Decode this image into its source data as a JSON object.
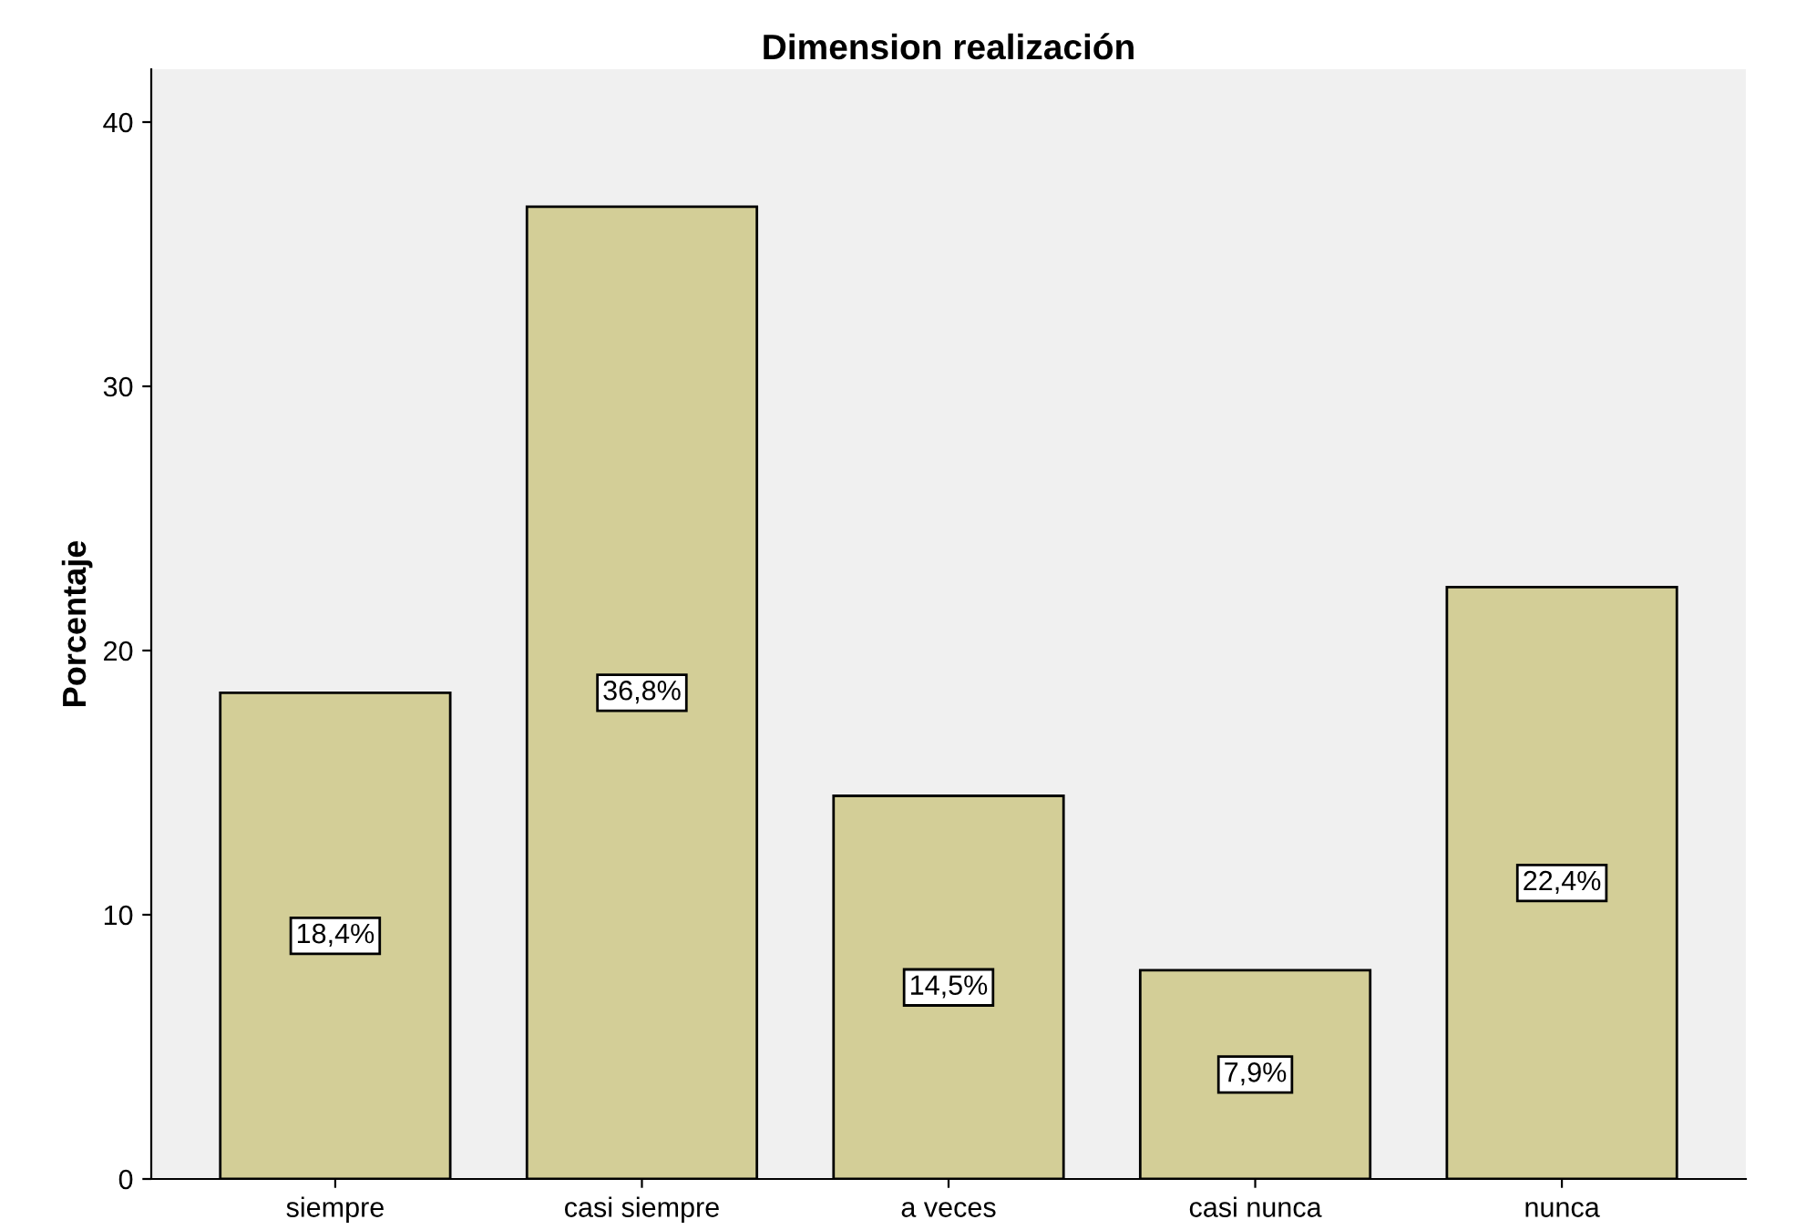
{
  "chart_data": {
    "type": "bar",
    "title": "Dimension realización",
    "ylabel": "Porcentaje",
    "categories": [
      "siempre",
      "casi siempre",
      "a veces",
      "casi nunca",
      "nunca"
    ],
    "values": [
      18.4,
      36.8,
      14.5,
      7.9,
      22.4
    ],
    "value_labels": [
      "18,4%",
      "36,8%",
      "14,5%",
      "7,9%",
      "22,4%"
    ],
    "color": "#d3ce97",
    "ylim": [
      0,
      42
    ],
    "yticks": [
      0,
      10,
      20,
      30,
      40
    ],
    "grid": false,
    "legend": false
  }
}
